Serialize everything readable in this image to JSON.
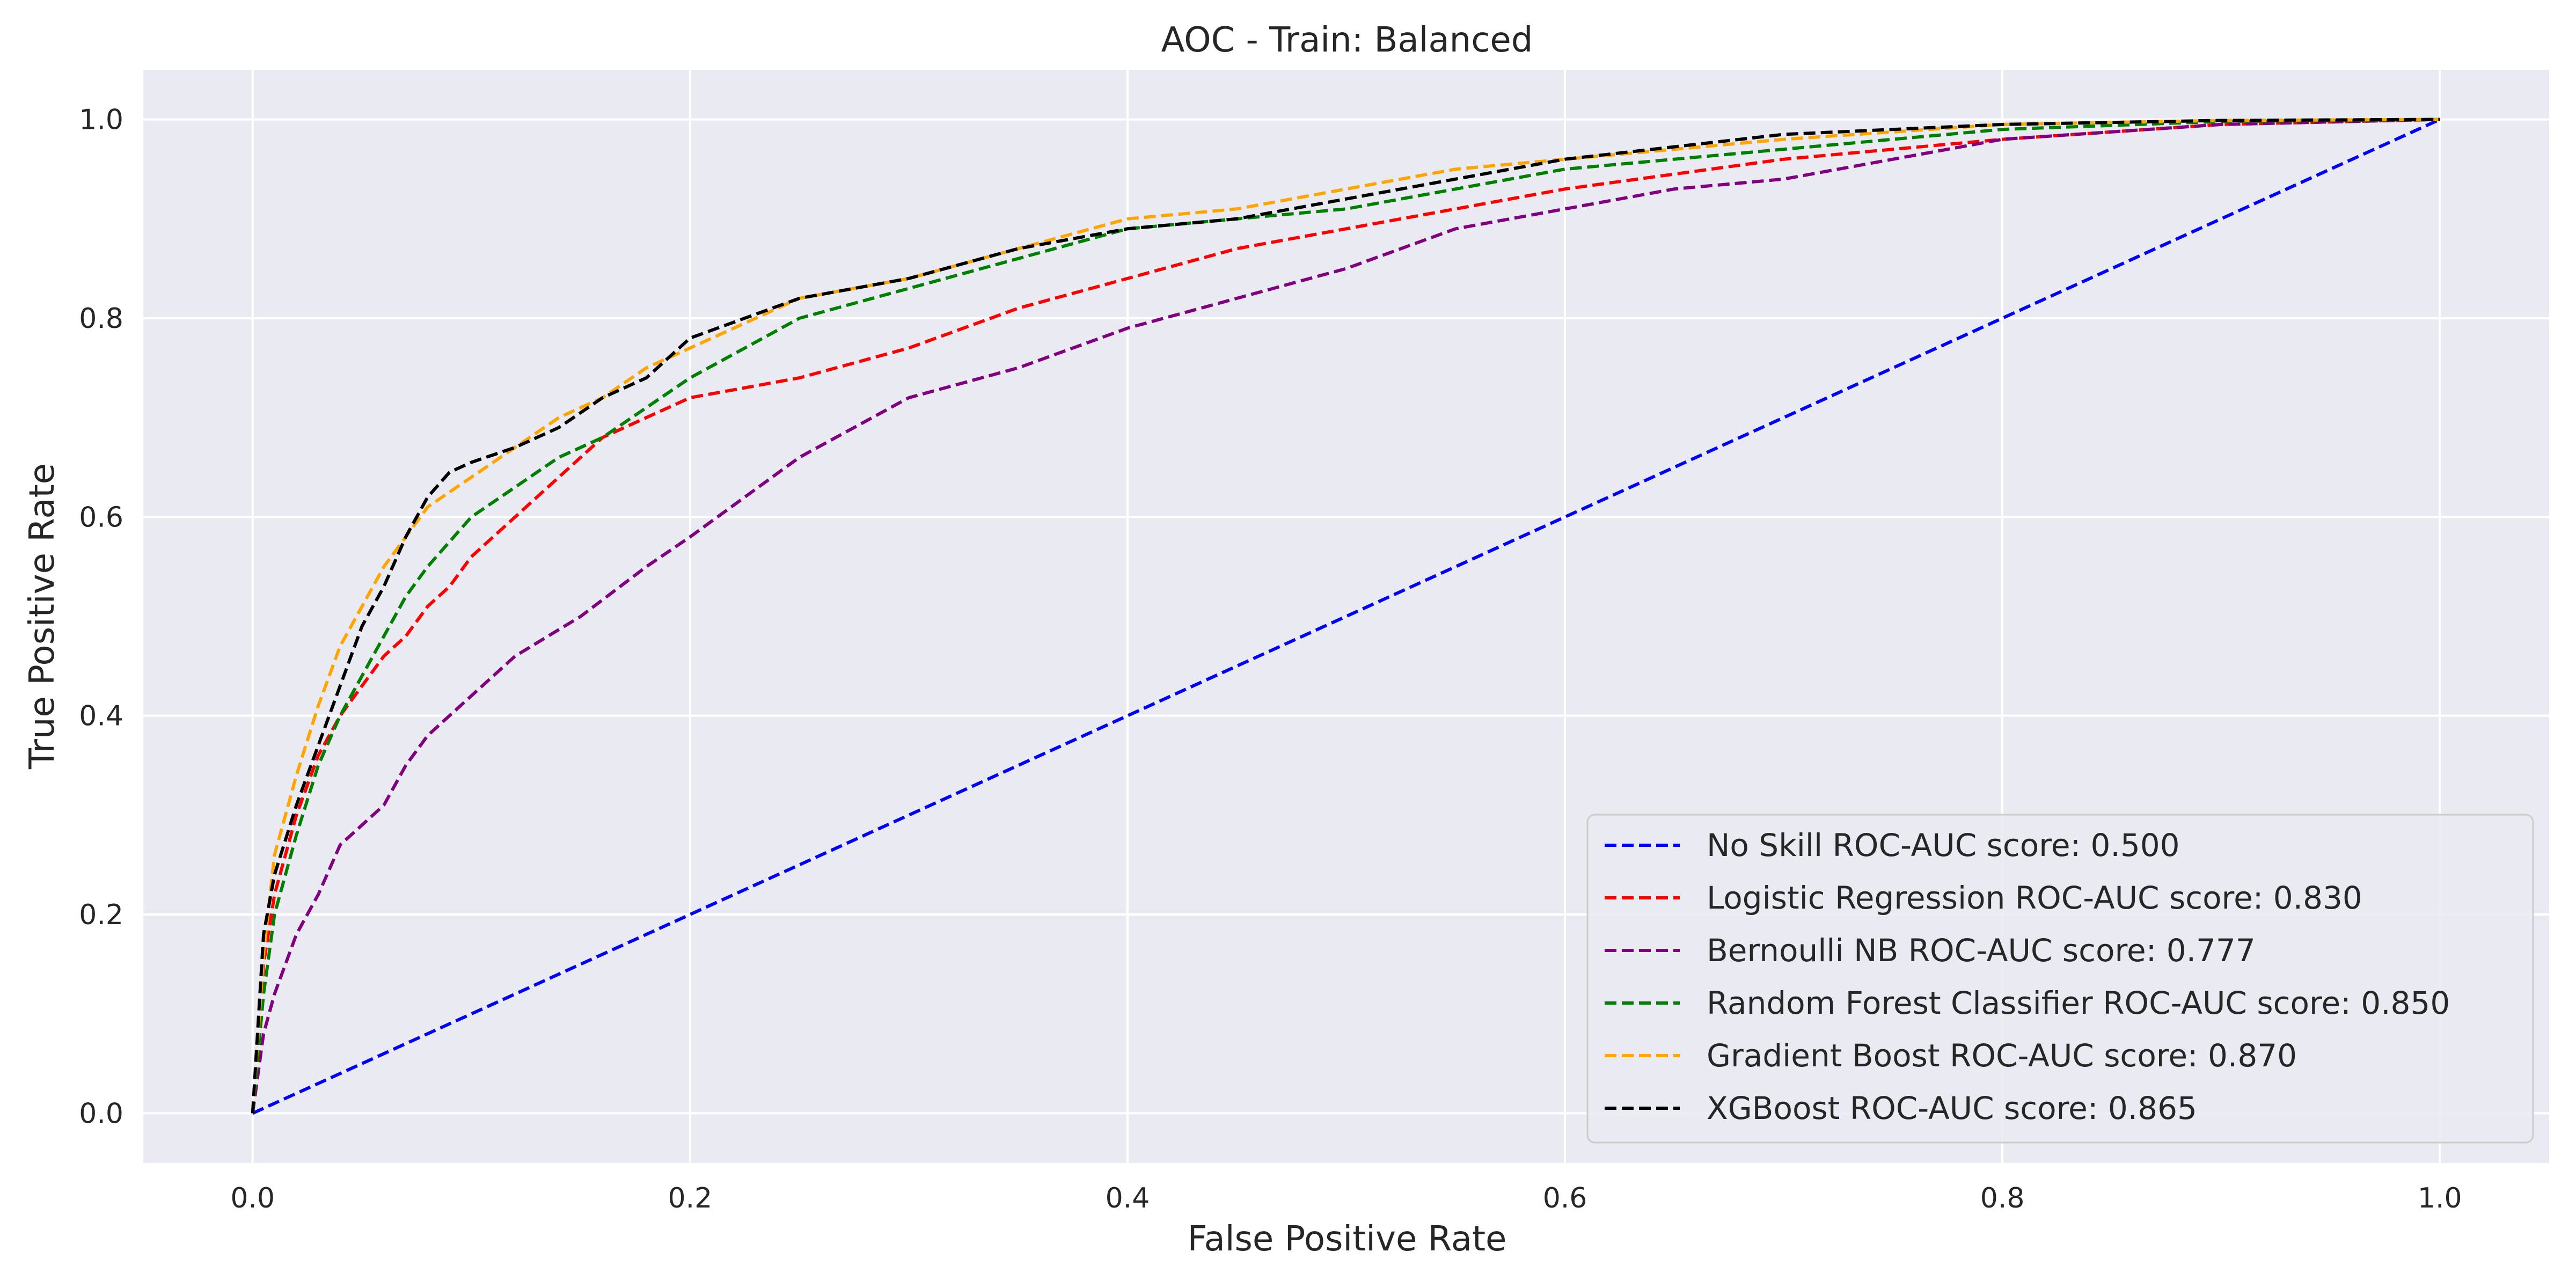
{
  "chart_data": {
    "type": "line",
    "title": "AOC - Train: Balanced",
    "xlabel": "False Positive Rate",
    "ylabel": "True Positive Rate",
    "xlim": [
      -0.05,
      1.05
    ],
    "ylim": [
      -0.05,
      1.05
    ],
    "xticks": [
      0.0,
      0.2,
      0.4,
      0.6,
      0.8,
      1.0
    ],
    "yticks": [
      0.0,
      0.2,
      0.4,
      0.6,
      0.8,
      1.0
    ],
    "xtick_labels": [
      "0.0",
      "0.2",
      "0.4",
      "0.6",
      "0.8",
      "1.0"
    ],
    "ytick_labels": [
      "0.0",
      "0.2",
      "0.4",
      "0.6",
      "0.8",
      "1.0"
    ],
    "grid": true,
    "background": "#eaeaf2",
    "legend_position": "lower-right",
    "series": [
      {
        "name": "No Skill ROC-AUC score: 0.500",
        "color": "#0000ff",
        "style": "dashed",
        "x": [
          0.0,
          1.0
        ],
        "y": [
          0.0,
          1.0
        ]
      },
      {
        "name": "Logistic Regression ROC-AUC score: 0.830",
        "color": "#ff0000",
        "style": "dashed",
        "x": [
          0,
          0.005,
          0.01,
          0.02,
          0.03,
          0.04,
          0.05,
          0.06,
          0.07,
          0.08,
          0.09,
          0.1,
          0.12,
          0.14,
          0.16,
          0.18,
          0.2,
          0.25,
          0.3,
          0.35,
          0.4,
          0.45,
          0.5,
          0.55,
          0.6,
          0.7,
          0.8,
          0.9,
          1.0
        ],
        "y": [
          0,
          0.15,
          0.22,
          0.3,
          0.36,
          0.4,
          0.43,
          0.46,
          0.48,
          0.51,
          0.53,
          0.56,
          0.6,
          0.64,
          0.68,
          0.7,
          0.72,
          0.74,
          0.77,
          0.81,
          0.84,
          0.87,
          0.89,
          0.91,
          0.93,
          0.96,
          0.98,
          0.995,
          1.0
        ]
      },
      {
        "name": "Bernoulli NB ROC-AUC score: 0.777",
        "color": "#800080",
        "style": "dashed",
        "x": [
          0,
          0.005,
          0.01,
          0.02,
          0.03,
          0.04,
          0.05,
          0.06,
          0.07,
          0.08,
          0.1,
          0.12,
          0.15,
          0.18,
          0.2,
          0.25,
          0.3,
          0.35,
          0.4,
          0.45,
          0.5,
          0.55,
          0.6,
          0.65,
          0.7,
          0.75,
          0.8,
          0.9,
          1.0
        ],
        "y": [
          0,
          0.08,
          0.12,
          0.18,
          0.22,
          0.27,
          0.29,
          0.31,
          0.35,
          0.38,
          0.42,
          0.46,
          0.5,
          0.55,
          0.58,
          0.66,
          0.72,
          0.75,
          0.79,
          0.82,
          0.85,
          0.89,
          0.91,
          0.93,
          0.94,
          0.96,
          0.98,
          0.995,
          1.0
        ]
      },
      {
        "name": "Random Forest Classifier ROC-AUC score: 0.850",
        "color": "#008000",
        "style": "dashed",
        "x": [
          0,
          0.005,
          0.01,
          0.02,
          0.03,
          0.04,
          0.05,
          0.06,
          0.07,
          0.08,
          0.1,
          0.12,
          0.14,
          0.16,
          0.18,
          0.2,
          0.25,
          0.3,
          0.35,
          0.4,
          0.45,
          0.5,
          0.55,
          0.6,
          0.7,
          0.8,
          0.9,
          1.0
        ],
        "y": [
          0,
          0.12,
          0.2,
          0.28,
          0.35,
          0.4,
          0.44,
          0.48,
          0.52,
          0.55,
          0.6,
          0.63,
          0.66,
          0.68,
          0.71,
          0.74,
          0.8,
          0.83,
          0.86,
          0.89,
          0.9,
          0.91,
          0.93,
          0.95,
          0.97,
          0.99,
          0.998,
          1.0
        ]
      },
      {
        "name": "Gradient Boost ROC-AUC score: 0.870",
        "color": "#ffa500",
        "style": "dashed",
        "x": [
          0,
          0.005,
          0.01,
          0.02,
          0.03,
          0.04,
          0.05,
          0.06,
          0.07,
          0.08,
          0.1,
          0.12,
          0.14,
          0.16,
          0.18,
          0.2,
          0.25,
          0.3,
          0.35,
          0.4,
          0.45,
          0.5,
          0.55,
          0.6,
          0.7,
          0.8,
          0.9,
          1.0
        ],
        "y": [
          0,
          0.16,
          0.26,
          0.34,
          0.41,
          0.47,
          0.51,
          0.55,
          0.58,
          0.61,
          0.64,
          0.67,
          0.7,
          0.72,
          0.75,
          0.77,
          0.82,
          0.84,
          0.87,
          0.9,
          0.91,
          0.93,
          0.95,
          0.96,
          0.98,
          0.995,
          0.999,
          1.0
        ]
      },
      {
        "name": "XGBoost ROC-AUC score: 0.865",
        "color": "#000000",
        "style": "dashed",
        "x": [
          0,
          0.005,
          0.01,
          0.02,
          0.03,
          0.04,
          0.05,
          0.06,
          0.07,
          0.08,
          0.09,
          0.1,
          0.12,
          0.14,
          0.16,
          0.18,
          0.2,
          0.25,
          0.3,
          0.35,
          0.4,
          0.45,
          0.5,
          0.55,
          0.6,
          0.7,
          0.8,
          0.9,
          1.0
        ],
        "y": [
          0,
          0.18,
          0.24,
          0.31,
          0.37,
          0.43,
          0.49,
          0.53,
          0.58,
          0.62,
          0.645,
          0.655,
          0.67,
          0.69,
          0.72,
          0.74,
          0.78,
          0.82,
          0.84,
          0.87,
          0.89,
          0.9,
          0.92,
          0.94,
          0.96,
          0.985,
          0.995,
          0.999,
          1.0
        ]
      }
    ]
  }
}
